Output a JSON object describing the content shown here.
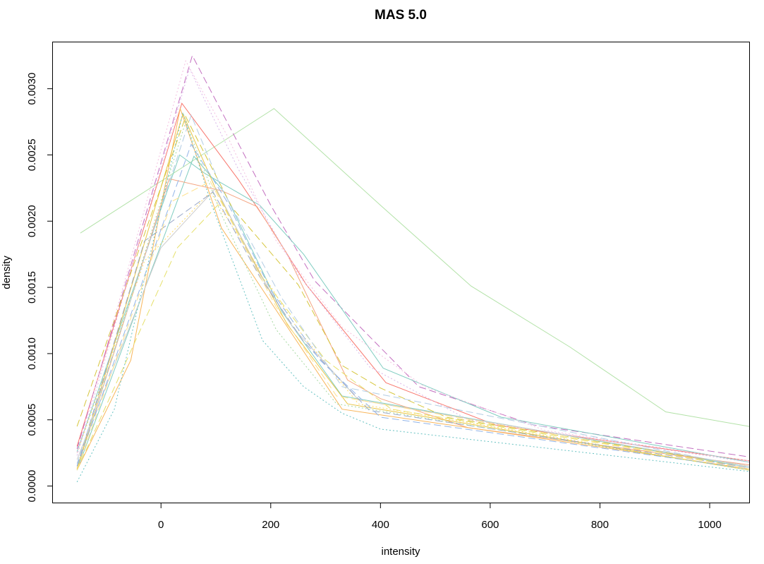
{
  "chart_data": {
    "type": "line",
    "title": "MAS 5.0",
    "xlabel": "intensity",
    "ylabel": "density",
    "xlim": [
      -197,
      1072
    ],
    "ylim": [
      -0.000125,
      0.00335
    ],
    "xticks": [
      0,
      200,
      400,
      600,
      800,
      1000
    ],
    "yticks": [
      0.0,
      0.0005,
      0.001,
      0.0015,
      0.002,
      0.0025,
      0.003
    ],
    "ytick_labels": [
      "0.0000",
      "0.0005",
      "0.0010",
      "0.0015",
      "0.0020",
      "0.0025",
      "0.0030"
    ],
    "grid": false,
    "legend": "none",
    "series": [
      {
        "color": "#b3e2a8",
        "dash": "solid",
        "points": [
          [
            -147,
            0.00191
          ],
          [
            206,
            0.00285
          ],
          [
            400,
            0.00212
          ],
          [
            565,
            0.00151
          ],
          [
            745,
            0.00105
          ],
          [
            920,
            0.00056
          ],
          [
            1072,
            0.00045
          ]
        ]
      },
      {
        "color": "#f8766d",
        "dash": "solid",
        "points": [
          [
            -153,
            0.0003
          ],
          [
            38,
            0.00289
          ],
          [
            140,
            0.00232
          ],
          [
            200,
            0.00195
          ],
          [
            265,
            0.00152
          ],
          [
            410,
            0.00078
          ],
          [
            610,
            0.00046
          ],
          [
            1072,
            0.00019
          ]
        ]
      },
      {
        "color": "#c36fc0",
        "dash": "dashed",
        "points": [
          [
            -153,
            0.00028
          ],
          [
            57,
            0.00325
          ],
          [
            200,
            0.00212
          ],
          [
            280,
            0.00155
          ],
          [
            470,
            0.00075
          ],
          [
            680,
            0.00046
          ],
          [
            1072,
            0.00022
          ]
        ]
      },
      {
        "color": "#80cdc1",
        "dash": "solid",
        "points": [
          [
            -153,
            0.00026
          ],
          [
            34,
            0.0025
          ],
          [
            80,
            0.00236
          ],
          [
            180,
            0.00212
          ],
          [
            260,
            0.00175
          ],
          [
            405,
            0.00089
          ],
          [
            620,
            0.00052
          ],
          [
            1072,
            0.00018
          ]
        ]
      },
      {
        "color": "#80cdc1",
        "dash": "solid",
        "points": [
          [
            -153,
            0.00012
          ],
          [
            60,
            0.00249
          ],
          [
            115,
            0.00222
          ],
          [
            220,
            0.00132
          ],
          [
            330,
            0.00068
          ],
          [
            1072,
            0.00014
          ]
        ]
      },
      {
        "color": "#f4a582",
        "dash": "solid",
        "points": [
          [
            -153,
            0.00013
          ],
          [
            15,
            0.00232
          ],
          [
            110,
            0.00223
          ],
          [
            175,
            0.00211
          ],
          [
            230,
            0.00175
          ],
          [
            340,
            0.0008
          ],
          [
            400,
            0.00066
          ],
          [
            560,
            0.00044
          ],
          [
            1072,
            0.00016
          ]
        ]
      },
      {
        "color": "#f8b55a",
        "dash": "solid",
        "points": [
          [
            -153,
            0.00012
          ],
          [
            -55,
            0.00095
          ],
          [
            35,
            0.00285
          ],
          [
            110,
            0.00195
          ],
          [
            330,
            0.00058
          ],
          [
            1072,
            0.00013
          ]
        ]
      },
      {
        "color": "#e8c547",
        "dash": "solid",
        "points": [
          [
            -153,
            0.00013
          ],
          [
            40,
            0.00281
          ],
          [
            100,
            0.00224
          ],
          [
            230,
            0.00122
          ],
          [
            340,
            0.00062
          ],
          [
            1072,
            0.00012
          ]
        ]
      },
      {
        "color": "#d6c63c",
        "dash": "dashed",
        "points": [
          [
            -153,
            0.00045
          ],
          [
            45,
            0.00279
          ],
          [
            130,
            0.0021
          ],
          [
            250,
            0.00152
          ],
          [
            330,
            0.00091
          ],
          [
            400,
            0.00074
          ],
          [
            520,
            0.00052
          ],
          [
            1072,
            0.00015
          ]
        ]
      },
      {
        "color": "#e6e06b",
        "dash": "dashed",
        "points": [
          [
            -153,
            0.00012
          ],
          [
            30,
            0.0018
          ],
          [
            110,
            0.00215
          ],
          [
            180,
            0.0016
          ],
          [
            300,
            0.00095
          ],
          [
            420,
            0.00058
          ],
          [
            1072,
            0.00014
          ]
        ]
      },
      {
        "color": "#ffd966",
        "dash": "dotted",
        "points": [
          [
            -153,
            0.00025
          ],
          [
            -30,
            0.0017
          ],
          [
            90,
            0.00222
          ],
          [
            170,
            0.0017
          ],
          [
            250,
            0.00118
          ],
          [
            360,
            0.00062
          ],
          [
            1072,
            0.00012
          ]
        ]
      },
      {
        "color": "#f4c0e0",
        "dash": "dotted",
        "points": [
          [
            -153,
            0.00025
          ],
          [
            45,
            0.00321
          ],
          [
            120,
            0.00265
          ],
          [
            210,
            0.00185
          ],
          [
            330,
            0.0012
          ],
          [
            480,
            0.00075
          ],
          [
            700,
            0.00042
          ],
          [
            1072,
            0.00019
          ]
        ]
      },
      {
        "color": "#d8b4e8",
        "dash": "dotted",
        "points": [
          [
            -153,
            0.00023
          ],
          [
            52,
            0.00315
          ],
          [
            140,
            0.0024
          ],
          [
            250,
            0.0016
          ],
          [
            380,
            0.0009
          ],
          [
            560,
            0.0005
          ],
          [
            1072,
            0.00018
          ]
        ]
      },
      {
        "color": "#cccccc",
        "dash": "solid",
        "points": [
          [
            -153,
            0.0002
          ],
          [
            0,
            0.0018
          ],
          [
            100,
            0.00225
          ],
          [
            180,
            0.0016
          ],
          [
            240,
            0.0012
          ],
          [
            360,
            0.00065
          ],
          [
            1072,
            0.00015
          ]
        ]
      },
      {
        "color": "#9aa8c8",
        "dash": "dashed",
        "points": [
          [
            -153,
            0.00015
          ],
          [
            -30,
            0.00185
          ],
          [
            95,
            0.00222
          ],
          [
            180,
            0.00158
          ],
          [
            260,
            0.00109
          ],
          [
            380,
            0.00057
          ],
          [
            1072,
            0.00014
          ]
        ]
      },
      {
        "color": "#92b4e8",
        "dash": "dashed",
        "points": [
          [
            -153,
            0.00015
          ],
          [
            55,
            0.00258
          ],
          [
            120,
            0.00215
          ],
          [
            200,
            0.00148
          ],
          [
            290,
            0.00095
          ],
          [
            400,
            0.00052
          ],
          [
            1072,
            0.00013
          ]
        ]
      },
      {
        "color": "#b3cde3",
        "dash": "dashed",
        "points": [
          [
            -153,
            0.00017
          ],
          [
            55,
            0.0028
          ],
          [
            110,
            0.00225
          ],
          [
            220,
            0.00142
          ],
          [
            330,
            0.00075
          ],
          [
            1072,
            0.00014
          ]
        ]
      },
      {
        "color": "#a6d9a0",
        "dash": "dotted",
        "points": [
          [
            -153,
            0.00012
          ],
          [
            45,
            0.00275
          ],
          [
            110,
            0.00205
          ],
          [
            210,
            0.00118
          ],
          [
            320,
            0.00062
          ],
          [
            1072,
            0.00012
          ]
        ]
      },
      {
        "color": "#66c2c2",
        "dash": "dotted",
        "points": [
          [
            -153,
            3e-05
          ],
          [
            -85,
            0.00058
          ],
          [
            40,
            0.00282
          ],
          [
            90,
            0.00215
          ],
          [
            185,
            0.0011
          ],
          [
            260,
            0.00075
          ],
          [
            330,
            0.00055
          ],
          [
            400,
            0.00043
          ],
          [
            1072,
            0.00011
          ]
        ]
      },
      {
        "color": "#fee08b",
        "dash": "dashed",
        "points": [
          [
            -153,
            0.00012
          ],
          [
            20,
            0.00215
          ],
          [
            90,
            0.0023
          ],
          [
            210,
            0.00135
          ],
          [
            320,
            0.00068
          ],
          [
            1072,
            0.00013
          ]
        ]
      }
    ]
  }
}
